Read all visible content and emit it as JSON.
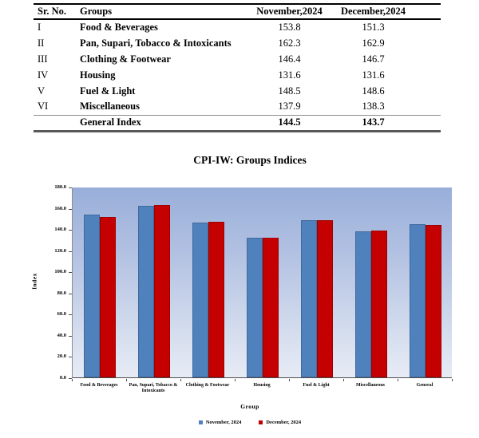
{
  "table": {
    "headers": [
      "Sr. No.",
      "Groups",
      "November,2024",
      "December,2024"
    ],
    "rows": [
      {
        "sr": "I",
        "group": "Food & Beverages",
        "nov": "153.8",
        "dec": "151.3"
      },
      {
        "sr": "II",
        "group": "Pan, Supari, Tobacco & Intoxicants",
        "nov": "162.3",
        "dec": "162.9"
      },
      {
        "sr": "III",
        "group": "Clothing & Footwear",
        "nov": "146.4",
        "dec": "146.7"
      },
      {
        "sr": "IV",
        "group": "Housing",
        "nov": "131.6",
        "dec": "131.6"
      },
      {
        "sr": "V",
        "group": "Fuel & Light",
        "nov": "148.5",
        "dec": "148.6"
      },
      {
        "sr": "VI",
        "group": "Miscellaneous",
        "nov": "137.9",
        "dec": "138.3"
      }
    ],
    "footer": {
      "label": "General Index",
      "nov": "144.5",
      "dec": "143.7"
    }
  },
  "chart_data": {
    "type": "bar",
    "title": "CPI-IW: Groups Indices",
    "xlabel": "Group",
    "ylabel": "Index",
    "categories": [
      "Food & Beverages",
      "Pan, Supari, Tobacco & Intoxicants",
      "Clothing & Footwear",
      "Housing",
      "Fuel & Light",
      "Miscellaneous",
      "General"
    ],
    "series": [
      {
        "name": "November, 2024",
        "color": "#4f81bd",
        "values": [
          153.8,
          162.3,
          146.4,
          131.6,
          148.5,
          137.9,
          144.5
        ]
      },
      {
        "name": "December, 2024",
        "color": "#c40000",
        "values": [
          151.3,
          162.9,
          146.7,
          131.6,
          148.6,
          138.3,
          143.7
        ]
      }
    ],
    "ylim": [
      0,
      180
    ],
    "ytick_step": 20,
    "ytick_decimals": 1,
    "legend_position": "bottom",
    "grid": false,
    "plot_background_top": "#98aed9",
    "plot_background_bottom": "#e7ebf5"
  }
}
